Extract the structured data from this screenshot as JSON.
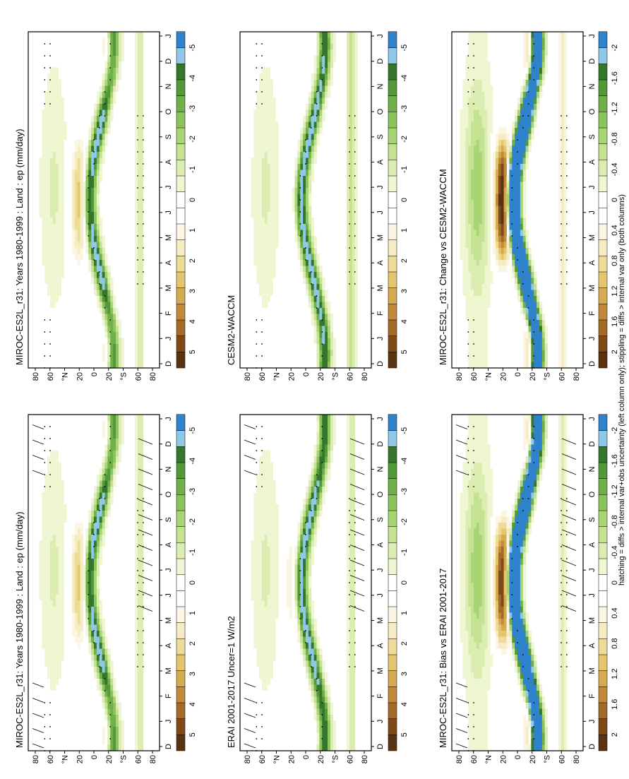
{
  "figure": {
    "footnote": "hatching = diffs > internal var+obs uncertainty (left column only); stippling = diffs > internal var only (both columns)"
  },
  "axes": {
    "time_ticks": [
      "D",
      "J",
      "F",
      "M",
      "A",
      "M",
      "J",
      "J",
      "A",
      "S",
      "O",
      "N",
      "D",
      "J"
    ],
    "lat_ticks": [
      "80",
      "60",
      "°N",
      "20",
      "0",
      "20",
      "°S",
      "60",
      "80"
    ]
  },
  "colorbars": {
    "absolute": {
      "labels": [
        "5",
        "4",
        "3",
        "2",
        "1",
        "0",
        "-1",
        "-2",
        "-3",
        "-4",
        "-5"
      ],
      "colors": [
        "#5c3310",
        "#7f4a18",
        "#a36a28",
        "#c08a3a",
        "#d6aa50",
        "#e6c570",
        "#efdb98",
        "#f6ecc4",
        "#fbf6e4",
        "#ffffff",
        "#ffffff",
        "#eef6d2",
        "#dcedb2",
        "#c4e292",
        "#a9d474",
        "#8cc45c",
        "#6fb148",
        "#52993a",
        "#34772c",
        "#8fc8e8",
        "#2f82cc"
      ]
    },
    "difference": {
      "labels": [
        "2",
        "1.6",
        "1.2",
        "0.8",
        "0.4",
        "0",
        "-0.4",
        "-0.8",
        "-1.2",
        "-1.6",
        "-2"
      ],
      "colors": [
        "#5c3310",
        "#7f4a18",
        "#a36a28",
        "#c08a3a",
        "#d6aa50",
        "#e6c570",
        "#efdb98",
        "#f6ecc4",
        "#fbf6e4",
        "#ffffff",
        "#ffffff",
        "#eef6d2",
        "#dcedb2",
        "#c4e292",
        "#a9d474",
        "#8cc45c",
        "#6fb148",
        "#52993a",
        "#34772c",
        "#8fc8e8",
        "#2f82cc"
      ]
    }
  },
  "chart_data": [
    {
      "type": "heatmap",
      "title": "MIROC-ES2L_r31: Years 1980-1999 : Land : ep (mm/day)",
      "x": "month",
      "y": "latitude",
      "ylim": [
        -90,
        90
      ],
      "colorbar": "absolute",
      "cbar_range": [
        -5,
        5
      ],
      "features": {
        "itcz_band": -1,
        "monsoon_hot": 2.5,
        "southern_band": -0.6
      },
      "hatching": true,
      "stippling": true
    },
    {
      "type": "heatmap",
      "title": "ERAI 2001-2017 Uncer=1 W/m2",
      "x": "month",
      "y": "latitude",
      "ylim": [
        -90,
        90
      ],
      "colorbar": "absolute",
      "cbar_range": [
        -5,
        5
      ],
      "features": {
        "itcz_band": -1,
        "monsoon_hot": 1.0,
        "southern_band": -0.6
      },
      "hatching": true,
      "stippling": true
    },
    {
      "type": "heatmap",
      "title": "MIROC-ES2L_r31: Bias vs ERAI 2001-2017",
      "x": "month",
      "y": "latitude",
      "ylim": [
        -90,
        90
      ],
      "colorbar": "difference",
      "cbar_range": [
        -2,
        2
      ],
      "features": {
        "itcz_band": -1,
        "monsoon_hot": 2.0,
        "southern_band": -0.2
      },
      "hatching": true,
      "stippling": true
    },
    {
      "type": "heatmap",
      "title": "MIROC-ES2L_r31: Years 1980-1999 : Land : ep (mm/day)",
      "x": "month",
      "y": "latitude",
      "ylim": [
        -90,
        90
      ],
      "colorbar": "absolute",
      "cbar_range": [
        -5,
        5
      ],
      "features": {
        "itcz_band": -1,
        "monsoon_hot": 2.5,
        "southern_band": -0.6
      },
      "hatching": false,
      "stippling": true
    },
    {
      "type": "heatmap",
      "title": "CESM2-WACCM",
      "x": "month",
      "y": "latitude",
      "ylim": [
        -90,
        90
      ],
      "colorbar": "absolute",
      "cbar_range": [
        -5,
        5
      ],
      "features": {
        "itcz_band": -1,
        "monsoon_hot": 0.6,
        "southern_band": -0.8
      },
      "hatching": false,
      "stippling": true
    },
    {
      "type": "heatmap",
      "title": "MIROC-ES2L_r31: Change vs CESM2-WACCM",
      "x": "month",
      "y": "latitude",
      "ylim": [
        -90,
        90
      ],
      "colorbar": "difference",
      "cbar_range": [
        -2,
        2
      ],
      "features": {
        "itcz_band": -1,
        "monsoon_hot": 2.2,
        "southern_band": 0.3
      },
      "hatching": false,
      "stippling": true
    }
  ]
}
